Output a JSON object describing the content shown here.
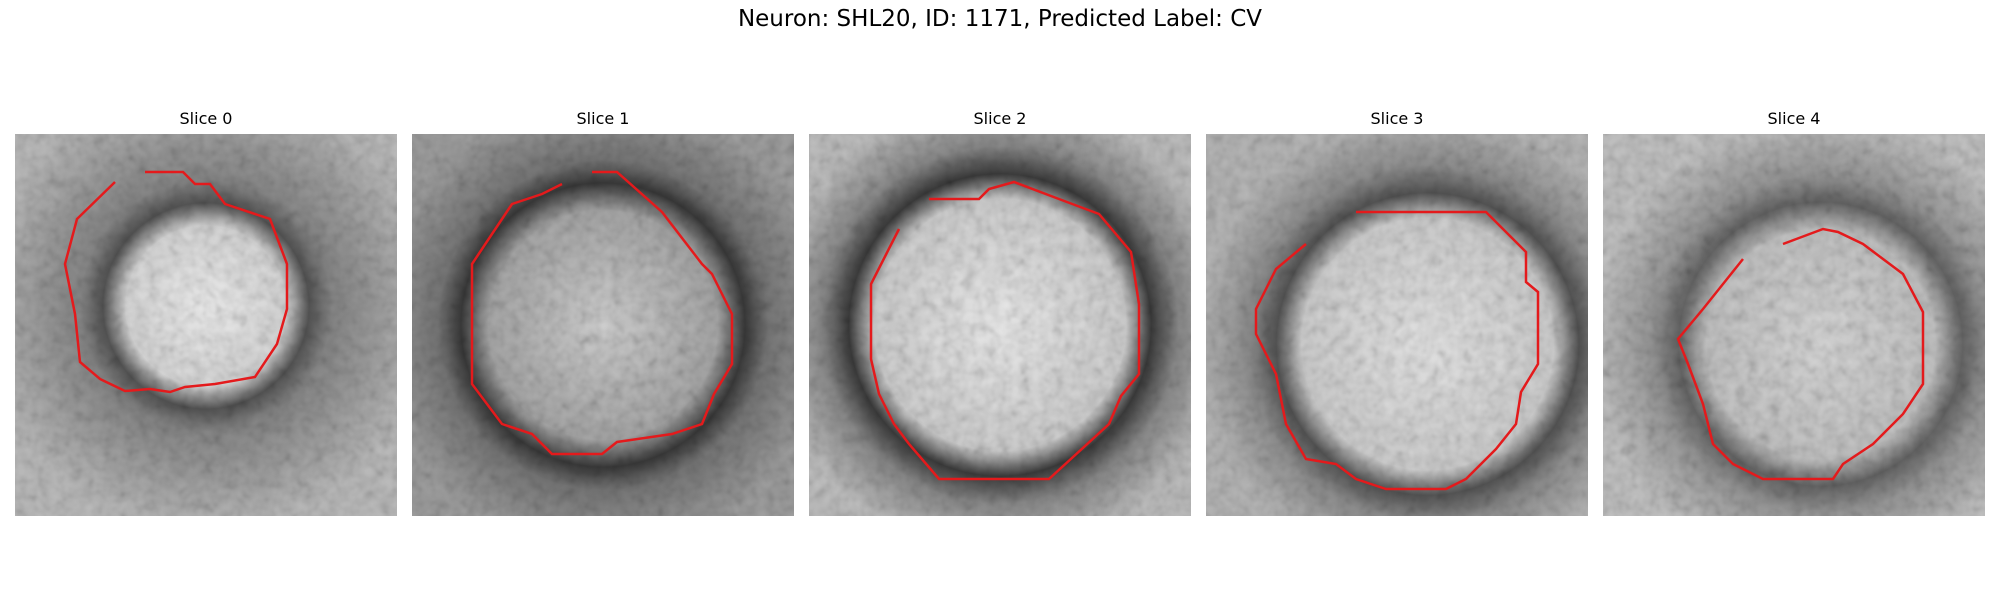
{
  "figure": {
    "title": "Neuron: SHL20, ID: 1171, Predicted Label: CV"
  },
  "panels": [
    {
      "title": "Slice 0"
    },
    {
      "title": "Slice 1"
    },
    {
      "title": "Slice 2"
    },
    {
      "title": "Slice 3"
    },
    {
      "title": "Slice 4"
    }
  ],
  "style": {
    "contour_color": "#e41a1c",
    "colormap": "grayscale"
  }
}
